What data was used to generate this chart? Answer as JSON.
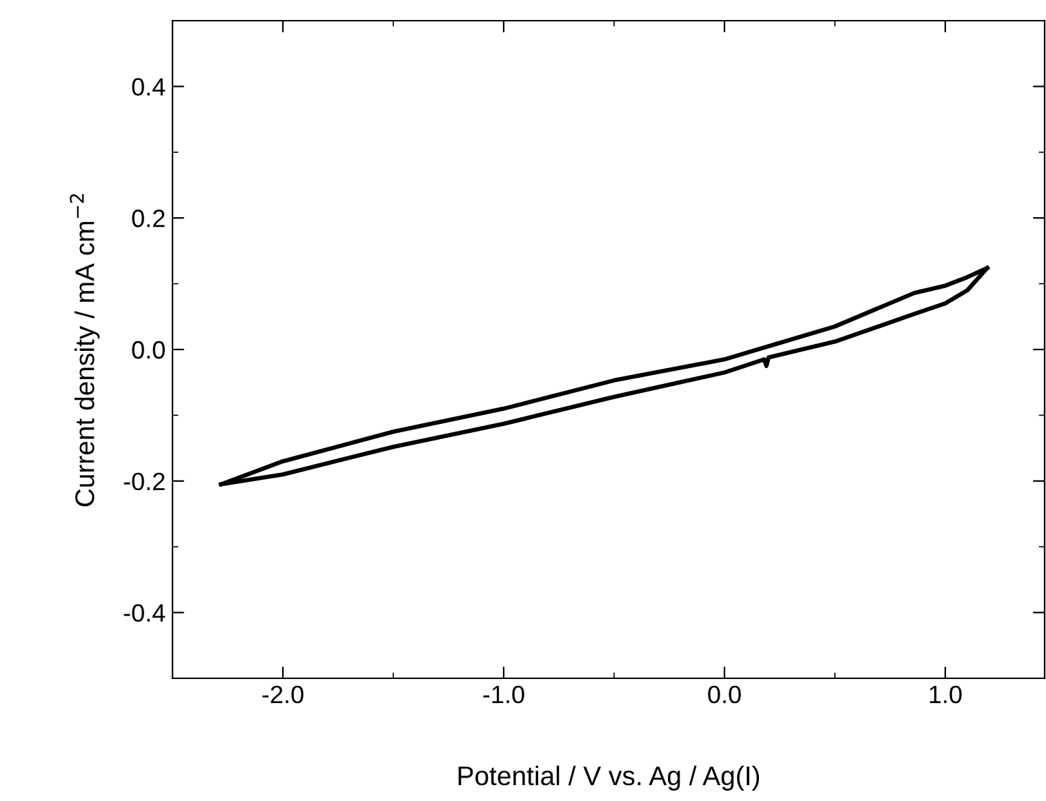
{
  "chart_data": {
    "type": "line",
    "xlabel": "Potential / V vs. Ag / Ag(I)",
    "ylabel": "Current density / mA cm$^{−2}$",
    "xlim": [
      -2.5,
      1.45
    ],
    "ylim": [
      -0.5,
      0.5
    ],
    "xticks": [
      {
        "value": -2,
        "label": "-2.0"
      },
      {
        "value": -1,
        "label": "-1.0"
      },
      {
        "value": 0,
        "label": "0.0"
      },
      {
        "value": 1,
        "label": "1.0"
      }
    ],
    "yticks": [
      {
        "value": -0.4,
        "label": "-0.4"
      },
      {
        "value": -0.2,
        "label": "-0.2"
      },
      {
        "value": 0,
        "label": "0.0"
      },
      {
        "value": 0.2,
        "label": "0.2"
      },
      {
        "value": 0.4,
        "label": "0.4"
      }
    ],
    "grid": false,
    "legend": false,
    "marker": "none",
    "line_style": "solid",
    "series": [
      {
        "color": "#000000",
        "x": [
          -2.28,
          -2.0,
          -1.5,
          -1.0,
          -0.5,
          0.0,
          0.18,
          0.19,
          0.2,
          0.5,
          0.86,
          1.0,
          1.1,
          1.19
        ],
        "values": [
          -0.205,
          -0.19,
          -0.148,
          -0.113,
          -0.072,
          -0.035,
          -0.015,
          -0.025,
          -0.012,
          0.012,
          0.054,
          0.07,
          0.09,
          0.124
        ]
      },
      {
        "color": "#000000",
        "x": [
          -2.28,
          -2.0,
          -1.5,
          -1.0,
          -0.5,
          0.0,
          0.2,
          0.5,
          0.86,
          1.0,
          1.1,
          1.19
        ],
        "values": [
          -0.205,
          -0.17,
          -0.125,
          -0.09,
          -0.047,
          -0.015,
          0.005,
          0.035,
          0.086,
          0.097,
          0.11,
          0.124
        ]
      }
    ]
  }
}
